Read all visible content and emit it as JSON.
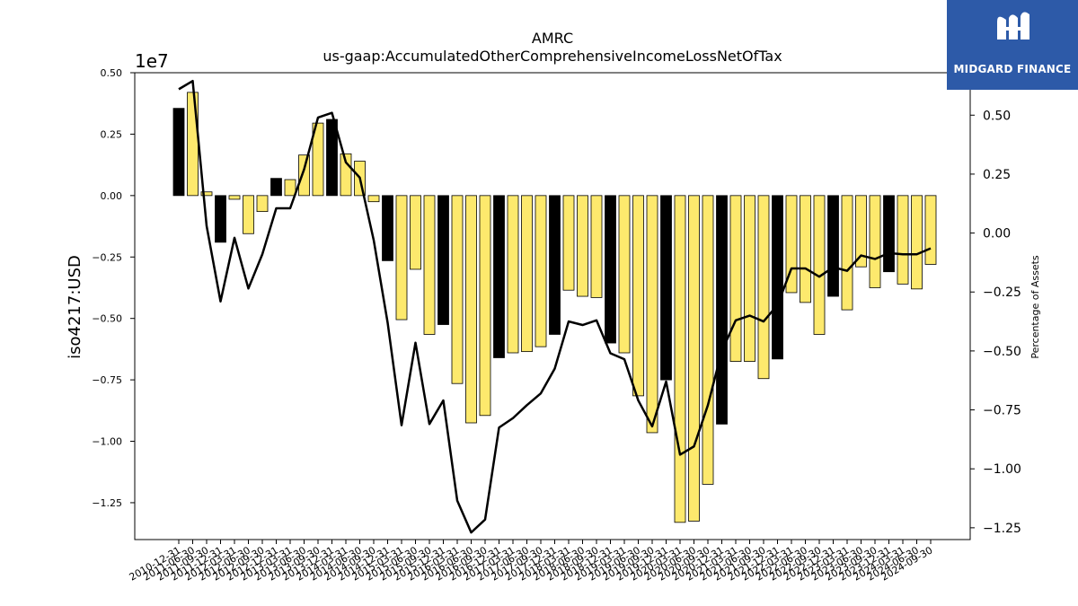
{
  "chart_data": {
    "type": "bar",
    "title": "AMRC",
    "subtitle": "us-gaap:AccumulatedOtherComprehensiveIncomeLossNetOfTax",
    "ylabel": "iso4217:USD",
    "y2label": "Percentage of Assets",
    "yscale_label": "1e7",
    "ylim": [
      -1.4,
      0.5
    ],
    "y2lim": [
      -1.3,
      0.68
    ],
    "yticks": [
      "0.50",
      "0.25",
      "0.00",
      "−0.25",
      "−0.50",
      "−0.75",
      "−1.00",
      "−1.25"
    ],
    "y2ticks": [
      "0.50",
      "0.25",
      "0.00",
      "−0.25",
      "−0.50",
      "−0.75",
      "−1.00",
      "−1.25"
    ],
    "categories": [
      "2010-12-31",
      "2011-06-30",
      "2011-09-30",
      "2011-12-31",
      "2012-03-31",
      "2012-06-30",
      "2012-09-30",
      "2012-12-31",
      "2013-03-31",
      "2013-06-30",
      "2013-09-30",
      "2013-12-31",
      "2014-03-31",
      "2014-06-30",
      "2014-09-30",
      "2014-12-31",
      "2015-03-31",
      "2015-06-30",
      "2015-09-30",
      "2015-12-31",
      "2016-03-31",
      "2016-06-30",
      "2016-09-30",
      "2016-12-31",
      "2017-03-31",
      "2017-06-30",
      "2017-09-30",
      "2017-12-31",
      "2018-03-31",
      "2018-06-30",
      "2018-09-30",
      "2018-12-31",
      "2019-03-31",
      "2019-06-30",
      "2019-09-30",
      "2019-12-31",
      "2020-03-31",
      "2020-06-30",
      "2020-09-30",
      "2020-12-31",
      "2021-03-31",
      "2021-06-30",
      "2021-09-30",
      "2021-12-31",
      "2022-03-31",
      "2022-06-30",
      "2022-09-30",
      "2022-12-31",
      "2023-03-31",
      "2023-06-30",
      "2023-09-30",
      "2023-12-31",
      "2024-03-31",
      "2024-06-30",
      "2024-09-30"
    ],
    "series": [
      {
        "type": "bar",
        "values": [
          0.355,
          0.42,
          0.015,
          -0.19,
          -0.015,
          -0.155,
          -0.065,
          0.07,
          0.065,
          0.165,
          0.295,
          0.31,
          0.17,
          0.14,
          -0.025,
          -0.265,
          -0.505,
          -0.3,
          -0.565,
          -0.525,
          -0.765,
          -0.925,
          -0.895,
          -0.66,
          -0.64,
          -0.635,
          -0.615,
          -0.565,
          -0.385,
          -0.41,
          -0.415,
          -0.6,
          -0.64,
          -0.815,
          -0.965,
          -0.75,
          -1.33,
          -1.325,
          -1.175,
          -0.93,
          -0.675,
          -0.675,
          -0.745,
          -0.665,
          -0.395,
          -0.435,
          -0.565,
          -0.41,
          -0.465,
          -0.29,
          -0.375,
          -0.31,
          -0.36,
          -0.38,
          -0.28
        ],
        "colors": [
          "black",
          "yellow",
          "yellow",
          "black",
          "yellow",
          "yellow",
          "yellow",
          "black",
          "yellow",
          "yellow",
          "yellow",
          "black",
          "yellow",
          "yellow",
          "yellow",
          "black",
          "yellow",
          "yellow",
          "yellow",
          "black",
          "yellow",
          "yellow",
          "yellow",
          "black",
          "yellow",
          "yellow",
          "yellow",
          "black",
          "yellow",
          "yellow",
          "yellow",
          "black",
          "yellow",
          "yellow",
          "yellow",
          "black",
          "yellow",
          "yellow",
          "yellow",
          "black",
          "yellow",
          "yellow",
          "yellow",
          "black",
          "yellow",
          "yellow",
          "yellow",
          "black",
          "yellow",
          "yellow",
          "yellow",
          "black",
          "yellow",
          "yellow",
          "yellow"
        ]
      },
      {
        "type": "line",
        "axis": "right",
        "values": [
          0.61,
          0.645,
          0.03,
          -0.29,
          -0.02,
          -0.235,
          -0.09,
          0.105,
          0.105,
          0.27,
          0.49,
          0.51,
          0.3,
          0.235,
          -0.03,
          -0.38,
          -0.815,
          -0.465,
          -0.81,
          -0.71,
          -1.135,
          -1.27,
          -1.215,
          -0.825,
          -0.785,
          -0.73,
          -0.68,
          -0.575,
          -0.375,
          -0.39,
          -0.37,
          -0.51,
          -0.535,
          -0.71,
          -0.82,
          -0.63,
          -0.94,
          -0.905,
          -0.73,
          -0.5,
          -0.37,
          -0.35,
          -0.375,
          -0.305,
          -0.15,
          -0.15,
          -0.185,
          -0.145,
          -0.16,
          -0.095,
          -0.11,
          -0.085,
          -0.09,
          -0.09,
          -0.065
        ]
      }
    ],
    "colors": {
      "yellow": "#fde96d",
      "black": "#000000",
      "line": "#000000"
    }
  },
  "logo": {
    "text": "MIDGARD FINANCE",
    "background": "#2d5aa8"
  }
}
